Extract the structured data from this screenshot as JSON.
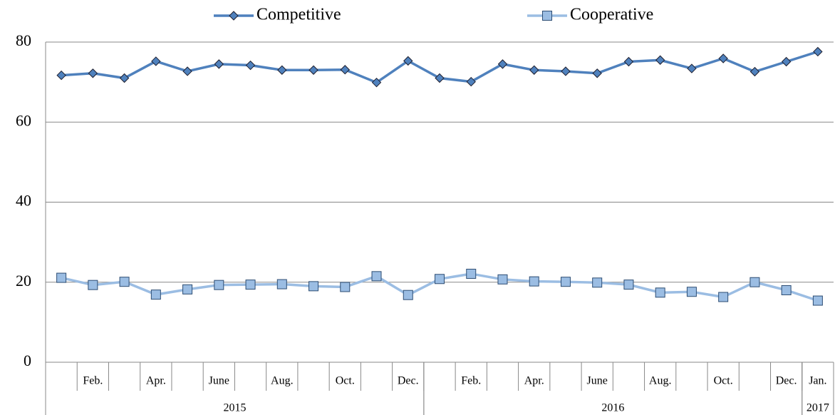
{
  "chart_data": {
    "type": "line",
    "categories": [
      null,
      "Feb.",
      null,
      "Apr.",
      null,
      "June",
      null,
      "Aug.",
      null,
      "Oct.",
      null,
      "Dec.",
      null,
      "Feb.",
      null,
      "Apr.",
      null,
      "June",
      null,
      "Aug.",
      null,
      "Oct.",
      null,
      "Dec.",
      "Jan."
    ],
    "category_groups": [
      {
        "label": "2015",
        "count": 12
      },
      {
        "label": "2016",
        "count": 12
      },
      {
        "label": "2017",
        "count": 1
      }
    ],
    "series": [
      {
        "name": "Competitive",
        "color": "#4f81bd",
        "marker": "diamond",
        "values": [
          71.7,
          72.2,
          71.0,
          75.2,
          72.7,
          74.5,
          74.2,
          73.0,
          73.0,
          73.1,
          69.9,
          75.3,
          71.0,
          70.1,
          74.5,
          73.0,
          72.7,
          72.2,
          75.1,
          75.5,
          73.4,
          75.9,
          72.6,
          75.1,
          77.6
        ]
      },
      {
        "name": "Cooperative",
        "color": "#9bbde3",
        "marker": "square",
        "values": [
          21.1,
          19.3,
          20.1,
          16.9,
          18.2,
          19.3,
          19.4,
          19.5,
          19.0,
          18.8,
          21.5,
          16.8,
          20.8,
          22.1,
          20.7,
          20.2,
          20.1,
          19.9,
          19.4,
          17.4,
          17.6,
          16.3,
          20.0,
          18.0,
          15.4
        ]
      }
    ],
    "ylim": [
      0,
      80
    ],
    "yticks": [
      0,
      20,
      40,
      60,
      80
    ],
    "grid": true,
    "legend": "top"
  }
}
